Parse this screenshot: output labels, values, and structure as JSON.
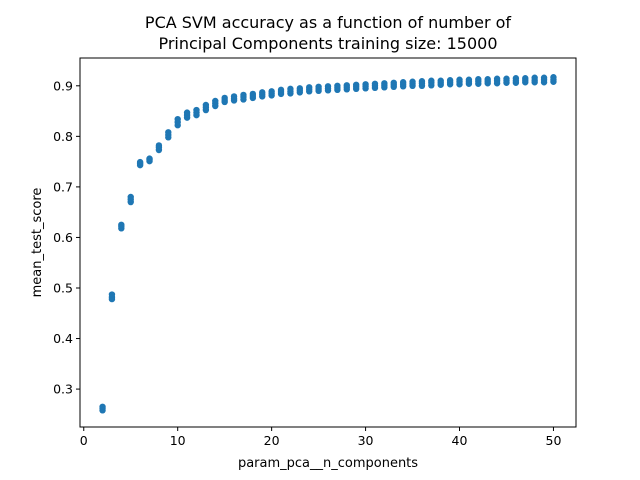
{
  "chart_data": {
    "type": "scatter",
    "title": [
      "PCA SVM accuracy as a function of number of",
      "Principal Components training size: 15000"
    ],
    "xlabel": "param_pca__n_components",
    "ylabel": "mean_test_score",
    "xlim": [
      -0.4,
      52.4
    ],
    "ylim": [
      0.225,
      0.955
    ],
    "xticks": [
      0,
      10,
      20,
      30,
      40,
      50
    ],
    "yticks": [
      0.3,
      0.4,
      0.5,
      0.6,
      0.7,
      0.8,
      0.9
    ],
    "grid": false,
    "marker_color": "#1f77b4",
    "points": {
      "x": [
        2,
        2,
        2,
        3,
        3,
        3,
        4,
        4,
        4,
        5,
        5,
        5,
        6,
        6,
        6,
        7,
        7,
        7,
        8,
        8,
        8,
        9,
        9,
        9,
        10,
        10,
        10,
        11,
        11,
        11,
        12,
        12,
        12,
        13,
        13,
        13,
        14,
        14,
        14,
        15,
        15,
        15,
        16,
        16,
        16,
        17,
        17,
        17,
        18,
        18,
        18,
        19,
        19,
        19,
        20,
        20,
        20,
        21,
        21,
        21,
        22,
        22,
        22,
        23,
        23,
        23,
        24,
        24,
        24,
        25,
        25,
        25,
        26,
        26,
        26,
        27,
        27,
        27,
        28,
        28,
        28,
        29,
        29,
        29,
        30,
        30,
        30,
        31,
        31,
        31,
        32,
        32,
        32,
        33,
        33,
        33,
        34,
        34,
        34,
        35,
        35,
        35,
        36,
        36,
        36,
        37,
        37,
        37,
        38,
        38,
        38,
        39,
        39,
        39,
        40,
        40,
        40,
        41,
        41,
        41,
        42,
        42,
        42,
        43,
        43,
        43,
        44,
        44,
        44,
        45,
        45,
        45,
        46,
        46,
        46,
        47,
        47,
        47,
        48,
        48,
        48,
        49,
        49,
        49,
        50,
        50,
        50
      ],
      "y": [
        0.258,
        0.262,
        0.265,
        0.478,
        0.482,
        0.487,
        0.618,
        0.622,
        0.625,
        0.67,
        0.675,
        0.68,
        0.743,
        0.746,
        0.749,
        0.751,
        0.754,
        0.756,
        0.773,
        0.778,
        0.782,
        0.798,
        0.803,
        0.808,
        0.822,
        0.828,
        0.834,
        0.837,
        0.842,
        0.847,
        0.842,
        0.847,
        0.852,
        0.852,
        0.857,
        0.862,
        0.86,
        0.865,
        0.87,
        0.868,
        0.872,
        0.876,
        0.871,
        0.875,
        0.879,
        0.873,
        0.878,
        0.882,
        0.876,
        0.88,
        0.884,
        0.879,
        0.883,
        0.887,
        0.881,
        0.885,
        0.889,
        0.884,
        0.888,
        0.892,
        0.885,
        0.889,
        0.894,
        0.887,
        0.891,
        0.895,
        0.889,
        0.893,
        0.897,
        0.89,
        0.894,
        0.898,
        0.891,
        0.895,
        0.899,
        0.892,
        0.896,
        0.9,
        0.893,
        0.897,
        0.901,
        0.894,
        0.898,
        0.902,
        0.895,
        0.899,
        0.903,
        0.896,
        0.9,
        0.904,
        0.897,
        0.901,
        0.905,
        0.898,
        0.902,
        0.906,
        0.899,
        0.903,
        0.907,
        0.9,
        0.904,
        0.908,
        0.9,
        0.905,
        0.909,
        0.901,
        0.906,
        0.91,
        0.902,
        0.906,
        0.91,
        0.903,
        0.907,
        0.911,
        0.903,
        0.908,
        0.912,
        0.904,
        0.908,
        0.912,
        0.904,
        0.909,
        0.913,
        0.905,
        0.909,
        0.913,
        0.905,
        0.91,
        0.914,
        0.906,
        0.91,
        0.914,
        0.906,
        0.91,
        0.915,
        0.907,
        0.911,
        0.915,
        0.907,
        0.911,
        0.916,
        0.907,
        0.912,
        0.916,
        0.908,
        0.912,
        0.917
      ]
    }
  }
}
